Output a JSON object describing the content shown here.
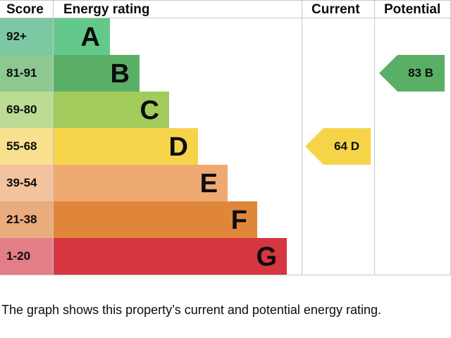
{
  "chart_data": {
    "type": "bar",
    "title": "Energy rating",
    "headers": {
      "score": "Score",
      "rating": "Energy rating",
      "current": "Current",
      "potential": "Potential"
    },
    "bands": [
      {
        "letter": "A",
        "score": "92+",
        "color": "#63c98a",
        "score_color": "#7cc8a2"
      },
      {
        "letter": "B",
        "score": "81-91",
        "color": "#5aaf67",
        "score_color": "#8dc891"
      },
      {
        "letter": "C",
        "score": "69-80",
        "color": "#a1cc5c",
        "score_color": "#bcdc93"
      },
      {
        "letter": "D",
        "score": "55-68",
        "color": "#f6d44a",
        "score_color": "#f8e08e"
      },
      {
        "letter": "E",
        "score": "39-54",
        "color": "#eeaa71",
        "score_color": "#f2c39c"
      },
      {
        "letter": "F",
        "score": "21-38",
        "color": "#e0863b",
        "score_color": "#eaac7c"
      },
      {
        "letter": "G",
        "score": "1-20",
        "color": "#d6363f",
        "score_color": "#e17e86"
      }
    ],
    "current": {
      "value": 64,
      "letter": "D",
      "label": "64  D",
      "color": "#f6d44a"
    },
    "potential": {
      "value": 83,
      "letter": "B",
      "label": "83  B",
      "color": "#5aaf67"
    }
  },
  "caption": "The graph shows this property’s current and potential energy rating."
}
